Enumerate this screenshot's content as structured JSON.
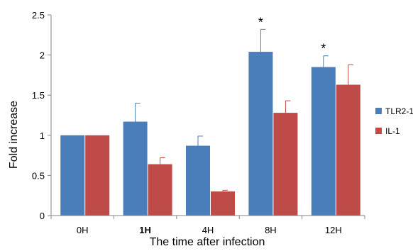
{
  "chart_data": {
    "type": "bar",
    "xlabel": "The time after infection",
    "ylabel": "Fold increase",
    "ylim": [
      0,
      2.5
    ],
    "yticks": [
      "0",
      "0.5",
      "1",
      "1.5",
      "2",
      "2.5"
    ],
    "categories": [
      "0H",
      "1H",
      "4H",
      "8H",
      "12H"
    ],
    "bold_categories": [
      "1H"
    ],
    "series": [
      {
        "name": "TLR2-1",
        "color": "#4a7ebb",
        "values": [
          1.0,
          1.17,
          0.87,
          2.04,
          1.85
        ],
        "errors": [
          0.0,
          0.23,
          0.12,
          0.28,
          0.14
        ]
      },
      {
        "name": "IL-1",
        "color": "#be4b48",
        "values": [
          1.0,
          0.64,
          0.3,
          1.28,
          1.63
        ],
        "errors": [
          0.0,
          0.08,
          0.015,
          0.15,
          0.25
        ]
      }
    ],
    "annotations": [
      {
        "category": "8H",
        "text": "*"
      },
      {
        "category": "12H",
        "text": "*"
      }
    ],
    "legend": "right",
    "grid": false
  }
}
